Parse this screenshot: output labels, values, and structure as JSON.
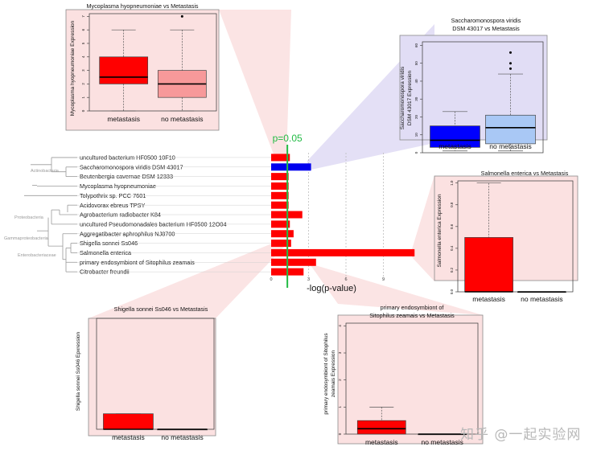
{
  "watermark": "知乎 @一起实验网",
  "colors": {
    "sig_red": "#ff0000",
    "sig_blue": "#0000ee",
    "p_line": "#22bb44",
    "pink_bg": "#fbe1e1",
    "lavender_bg": "#e1ddf5",
    "meta_red": "#ff0000",
    "nometa_pink": "#f7999a",
    "meta_blue": "#0000ff",
    "nometa_lightblue": "#a9c8f5",
    "taxonomy_label": "#999999"
  },
  "chart_data": [
    {
      "id": "main",
      "type": "bar",
      "orientation": "horizontal",
      "xlabel": "-log(p-value)",
      "xticks": [
        "0",
        "3",
        "6",
        "9"
      ],
      "xlim": [
        0,
        11.5
      ],
      "grid": "dashed vertical lines at ticks",
      "reference_line": {
        "label": "p=0.05",
        "value": 1.3
      },
      "taxonomy_labels": [
        "Actinobacteria",
        "Proteobacteria",
        "Gammaproteobacteria",
        "Enterobacteriaceae"
      ],
      "categories": [
        "uncultured bacterium HF0500 10F10",
        "Saccharomonospora viridis DSM 43017",
        "Beutenbergia cavernae DSM 12333",
        "Mycoplasma hyopneumoniae",
        "Tolypothrix sp. PCC 7601",
        "Acidovorax ebreus TPSY",
        "Agrobacterium radiobacter K84",
        "uncultured Pseudomonadales bacterium HF0500 12O04",
        "Aggregatibacter aphrophilus NJ8700",
        "Shigella sonnei Ss046",
        "Salmonella enterica",
        "primary endosymbiont of Sitophilus zeamais",
        "Citrobacter freundii"
      ],
      "values": [
        1.5,
        3.2,
        1.4,
        1.4,
        1.4,
        1.4,
        2.5,
        1.5,
        1.8,
        1.6,
        11.5,
        3.6,
        2.6
      ],
      "bar_colors": [
        "red",
        "blue",
        "red",
        "red",
        "red",
        "red",
        "red",
        "red",
        "red",
        "red",
        "red",
        "red",
        "red"
      ]
    },
    {
      "id": "mycoplasma",
      "type": "box",
      "title": "Mycoplasma hyopneumoniae vs Metastasis",
      "ylabel": "Mycoplasma hyopneumoniae Expression",
      "yticks": [
        "0",
        "1",
        "2",
        "3",
        "4",
        "5",
        "6",
        "7"
      ],
      "ylim": [
        0,
        7.2
      ],
      "categories": [
        "metastasis",
        "no metastasis"
      ],
      "boxes": [
        {
          "whisker_low": 0,
          "q1": 2,
          "median": 2.5,
          "q3": 4,
          "whisker_high": 6,
          "outliers": []
        },
        {
          "whisker_low": 0,
          "q1": 1,
          "median": 2,
          "q3": 3,
          "whisker_high": 6,
          "outliers": [
            7
          ]
        }
      ]
    },
    {
      "id": "saccharomonospora",
      "type": "box",
      "title": "Saccharomonospora viridis\nDSM 43017 vs Metastasis",
      "ylabel": "Saccharomonospora viridis\nDSM 43017 Expression",
      "yticks": [
        "0",
        "10",
        "20",
        "30",
        "40",
        "50",
        "60"
      ],
      "ylim": [
        0,
        62
      ],
      "categories": [
        "metastasis",
        "no metastasis"
      ],
      "boxes": [
        {
          "whisker_low": 1,
          "q1": 3,
          "median": 7,
          "q3": 15,
          "whisker_high": 23,
          "outliers": []
        },
        {
          "whisker_low": 1,
          "q1": 5,
          "median": 14,
          "q3": 21,
          "whisker_high": 44,
          "outliers": [
            47,
            50,
            56
          ]
        }
      ]
    },
    {
      "id": "salmonella",
      "type": "box",
      "title": "Salmonella enterica vs Metastasis",
      "ylabel": "Salmonella enterica Expression",
      "yticks": [
        "0.0",
        "0.2",
        "0.4",
        "0.6",
        "0.8",
        "1.0"
      ],
      "ylim": [
        0,
        1.02
      ],
      "categories": [
        "metastasis",
        "no metastasis"
      ],
      "boxes": [
        {
          "whisker_low": 0,
          "q1": 0,
          "median": 0,
          "q3": 0.5,
          "whisker_high": 1.0,
          "outliers": []
        },
        {
          "whisker_low": 0,
          "q1": 0,
          "median": 0,
          "q3": 0,
          "whisker_high": 0,
          "outliers": []
        }
      ]
    },
    {
      "id": "shigella",
      "type": "box",
      "title": "Shigella sonnei Ss046 vs Metastasis",
      "ylabel": "Shigella sonnei Ss046 Epxression",
      "yticks": [],
      "ylim": [
        0,
        1
      ],
      "categories": [
        "metastasis",
        "no metastasis"
      ],
      "boxes": [
        {
          "whisker_low": 0,
          "q1": 0,
          "median": 0,
          "q3": 0.14,
          "whisker_high": 0.14,
          "outliers": []
        },
        {
          "whisker_low": 0,
          "q1": 0,
          "median": 0,
          "q3": 0,
          "whisker_high": 0,
          "outliers": []
        }
      ]
    },
    {
      "id": "endosymbiont",
      "type": "box",
      "title": "primary endosymbiont of\nSitophilus zeamais vs Metastasis",
      "ylabel": "primary endosymbiont of Sitophilus\nzeamais Expression",
      "yticks": [
        "0",
        "1",
        "2",
        "3",
        "4"
      ],
      "ylim": [
        0,
        4.1
      ],
      "categories": [
        "metastasis",
        "no metastasis"
      ],
      "boxes": [
        {
          "whisker_low": 0,
          "q1": 0,
          "median": 0.2,
          "q3": 0.5,
          "whisker_high": 1.0,
          "outliers": []
        },
        {
          "whisker_low": 0,
          "q1": 0,
          "median": 0,
          "q3": 0,
          "whisker_high": 0,
          "outliers": []
        }
      ]
    }
  ]
}
